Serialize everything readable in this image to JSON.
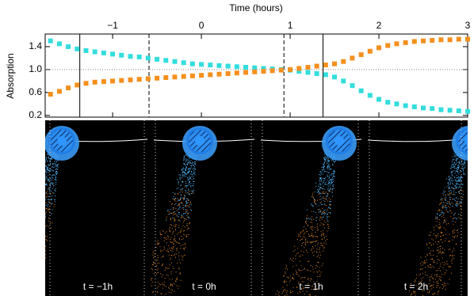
{
  "chart_data": {
    "type": "scatter",
    "title": "Time (hours)",
    "y_label": "Absorption",
    "x": [
      -1.7,
      -1.6,
      -1.5,
      -1.4,
      -1.3,
      -1.2,
      -1.1,
      -1.0,
      -0.9,
      -0.8,
      -0.7,
      -0.6,
      -0.5,
      -0.4,
      -0.3,
      -0.2,
      -0.1,
      0.0,
      0.1,
      0.2,
      0.3,
      0.4,
      0.5,
      0.6,
      0.7,
      0.8,
      0.9,
      1.0,
      1.1,
      1.2,
      1.3,
      1.4,
      1.5,
      1.6,
      1.7,
      1.8,
      1.9,
      2.0,
      2.1,
      2.2,
      2.3,
      2.4,
      2.5,
      2.6,
      2.7,
      2.8,
      2.9,
      3.0
    ],
    "series": [
      {
        "color": "#33dddd",
        "values": [
          1.5,
          1.45,
          1.4,
          1.36,
          1.33,
          1.31,
          1.29,
          1.27,
          1.25,
          1.23,
          1.22,
          1.2,
          1.18,
          1.16,
          1.14,
          1.12,
          1.1,
          1.09,
          1.08,
          1.07,
          1.06,
          1.05,
          1.04,
          1.03,
          1.02,
          1.01,
          1.0,
          0.99,
          0.97,
          0.95,
          0.93,
          0.91,
          0.87,
          0.8,
          0.72,
          0.63,
          0.55,
          0.48,
          0.43,
          0.4,
          0.37,
          0.35,
          0.33,
          0.32,
          0.3,
          0.29,
          0.28,
          0.27
        ]
      },
      {
        "color": "#f5901e",
        "values": [
          0.57,
          0.62,
          0.68,
          0.73,
          0.76,
          0.78,
          0.79,
          0.8,
          0.81,
          0.82,
          0.83,
          0.84,
          0.85,
          0.86,
          0.87,
          0.88,
          0.89,
          0.9,
          0.91,
          0.92,
          0.93,
          0.94,
          0.95,
          0.96,
          0.97,
          0.98,
          0.99,
          1.0,
          1.02,
          1.04,
          1.06,
          1.08,
          1.1,
          1.14,
          1.2,
          1.26,
          1.32,
          1.38,
          1.42,
          1.45,
          1.47,
          1.49,
          1.5,
          1.51,
          1.52,
          1.52,
          1.53,
          1.53
        ]
      }
    ],
    "xlim": [
      -1.76,
      3.0
    ],
    "ylim": [
      0.17,
      1.62
    ],
    "xticks": [
      {
        "value": -1,
        "label": "−1"
      },
      0,
      1,
      2,
      3
    ],
    "yticks": [
      0.2,
      0.6,
      {
        "value": 1,
        "label": "1.0"
      },
      1.4
    ],
    "vlines": [
      {
        "value": -1.37,
        "style": "solid"
      },
      {
        "value": -0.59,
        "style": "dashed"
      },
      {
        "value": 0.93,
        "style": "dashed"
      },
      {
        "value": 1.37,
        "style": "solid"
      }
    ],
    "hline": 1
  },
  "panels": {
    "labels": [
      "t = −1h",
      "t = 0h",
      "t = 1h",
      "t = 2h"
    ]
  }
}
